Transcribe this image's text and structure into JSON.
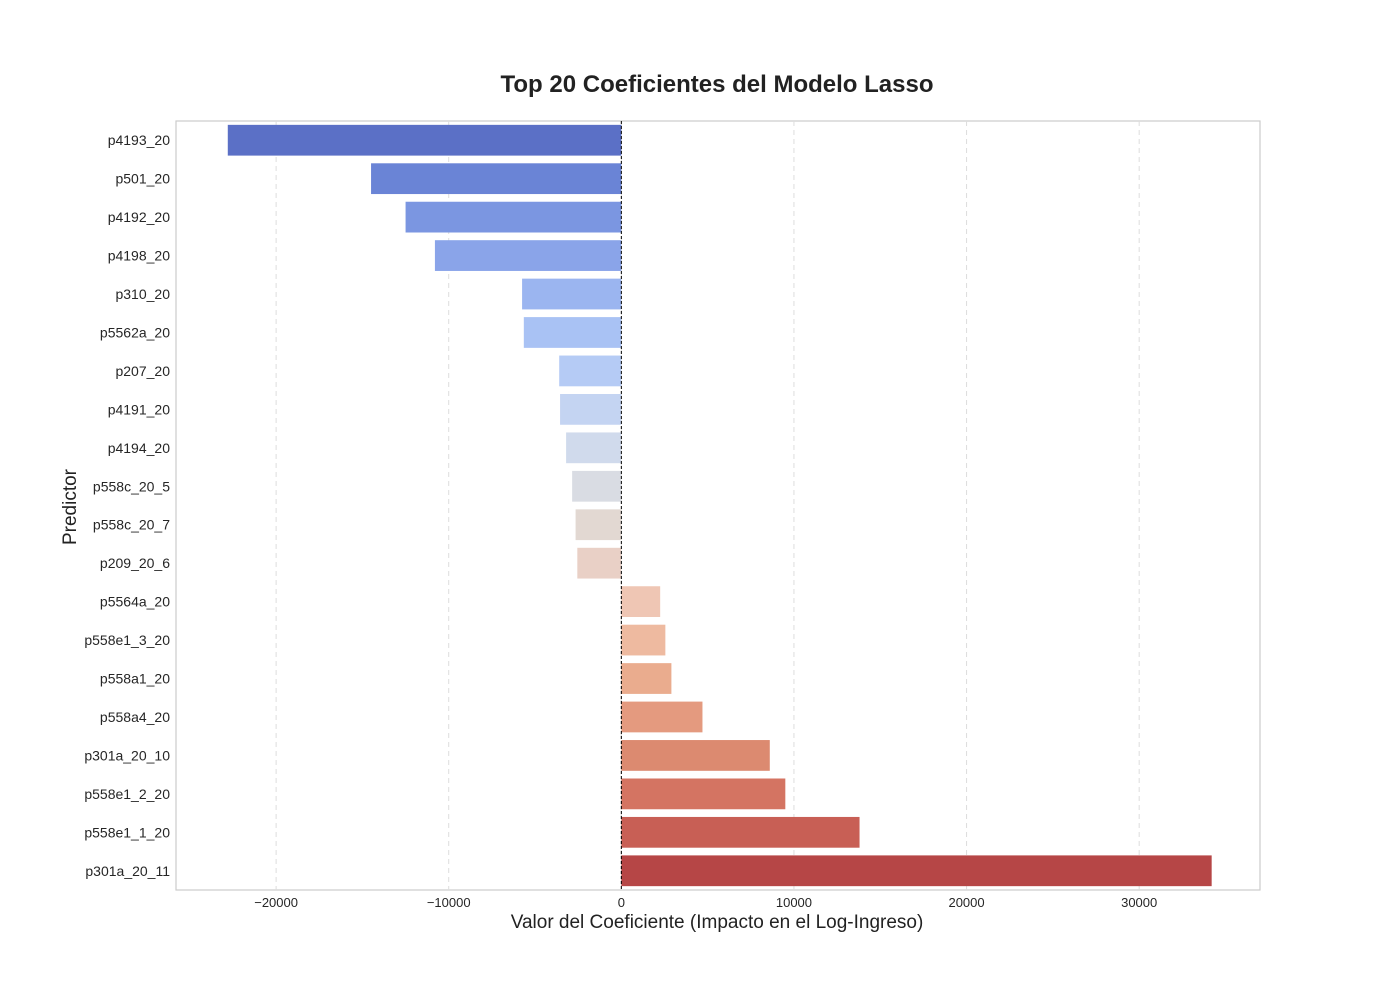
{
  "chart_data": {
    "type": "bar",
    "orientation": "horizontal",
    "title": "Top 20 Coeficientes del Modelo Lasso",
    "xlabel": "Valor del Coeficiente (Impacto en el Log-Ingreso)",
    "ylabel": "Predictor",
    "xlim": [
      -25800,
      37000
    ],
    "xticks": [
      -20000,
      -10000,
      0,
      10000,
      20000,
      30000
    ],
    "xtick_labels": [
      "−20000",
      "−10000",
      "0",
      "10000",
      "20000",
      "30000"
    ],
    "grid": "vertical dashed",
    "zero_line": "dashed",
    "colormap": "coolwarm",
    "categories": [
      "p4193_20",
      "p501_20",
      "p4192_20",
      "p4198_20",
      "p310_20",
      "p5562a_20",
      "p207_20",
      "p4191_20",
      "p4194_20",
      "p558c_20_5",
      "p558c_20_7",
      "p209_20_6",
      "p5564a_20",
      "p558e1_3_20",
      "p558a1_20",
      "p558a4_20",
      "p301a_20_10",
      "p558e1_2_20",
      "p558e1_1_20",
      "p301a_20_11"
    ],
    "values": [
      -22800,
      -14500,
      -12500,
      -10800,
      -5750,
      -5650,
      -3600,
      -3550,
      -3200,
      -2850,
      -2650,
      -2550,
      2250,
      2550,
      2900,
      4700,
      8600,
      9500,
      13800,
      34200
    ],
    "colors": [
      "#5b70c6",
      "#6a84d6",
      "#7b96e1",
      "#8aa4e9",
      "#9bb5f0",
      "#a9c2f4",
      "#b5cbf5",
      "#c4d4f2",
      "#d0daec",
      "#d9dce3",
      "#e2d8d2",
      "#e9d0c6",
      "#efc6b4",
      "#eebaa0",
      "#eaac8e",
      "#e49a7f",
      "#dc8a70",
      "#d47462",
      "#c85f55",
      "#b64646"
    ]
  }
}
